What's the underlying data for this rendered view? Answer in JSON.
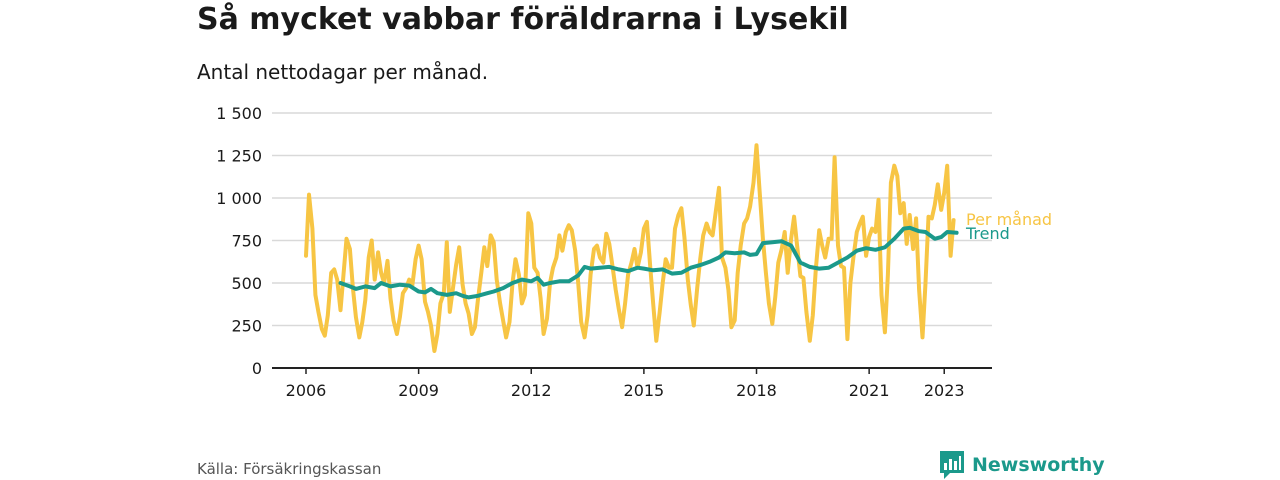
{
  "title": "Så mycket vabbar föräldrarna i Lysekil",
  "subtitle": "Antal nettodagar per månad.",
  "source": "Källa: Försäkringskassan",
  "brand": "Newsworthy",
  "colors": {
    "monthly": "#f7c544",
    "trend": "#1b998b",
    "grid": "#d9d9d9",
    "axis": "#222222"
  },
  "chart_data": {
    "type": "line",
    "ylim": [
      0,
      1500
    ],
    "y_ticks": [
      0,
      250,
      500,
      750,
      1000,
      1250,
      1500
    ],
    "y_tick_labels": [
      "0",
      "250",
      "500",
      "750",
      "1 000",
      "1 250",
      "1 500"
    ],
    "x_range": [
      2006.0,
      2023.5
    ],
    "x_ticks": [
      2006,
      2009,
      2012,
      2015,
      2018,
      2021,
      2023
    ],
    "x_tick_labels": [
      "2006",
      "2009",
      "2012",
      "2015",
      "2018",
      "2021",
      "2023"
    ],
    "grid": "horizontal",
    "series": [
      {
        "name": "Per månad",
        "points": [
          [
            2006.0,
            660
          ],
          [
            2006.08,
            1020
          ],
          [
            2006.17,
            820
          ],
          [
            2006.25,
            430
          ],
          [
            2006.33,
            330
          ],
          [
            2006.42,
            230
          ],
          [
            2006.5,
            190
          ],
          [
            2006.58,
            310
          ],
          [
            2006.67,
            560
          ],
          [
            2006.75,
            580
          ],
          [
            2006.83,
            520
          ],
          [
            2006.92,
            340
          ],
          [
            2007.0,
            550
          ],
          [
            2007.08,
            760
          ],
          [
            2007.17,
            700
          ],
          [
            2007.25,
            470
          ],
          [
            2007.33,
            300
          ],
          [
            2007.42,
            180
          ],
          [
            2007.5,
            270
          ],
          [
            2007.58,
            400
          ],
          [
            2007.67,
            650
          ],
          [
            2007.75,
            750
          ],
          [
            2007.83,
            520
          ],
          [
            2007.92,
            680
          ],
          [
            2008.0,
            560
          ],
          [
            2008.08,
            500
          ],
          [
            2008.17,
            630
          ],
          [
            2008.25,
            410
          ],
          [
            2008.33,
            280
          ],
          [
            2008.42,
            200
          ],
          [
            2008.5,
            300
          ],
          [
            2008.58,
            440
          ],
          [
            2008.67,
            470
          ],
          [
            2008.75,
            520
          ],
          [
            2008.83,
            480
          ],
          [
            2008.92,
            640
          ],
          [
            2009.0,
            720
          ],
          [
            2009.08,
            640
          ],
          [
            2009.17,
            390
          ],
          [
            2009.25,
            330
          ],
          [
            2009.33,
            250
          ],
          [
            2009.42,
            100
          ],
          [
            2009.5,
            200
          ],
          [
            2009.58,
            380
          ],
          [
            2009.67,
            440
          ],
          [
            2009.75,
            740
          ],
          [
            2009.83,
            330
          ],
          [
            2009.92,
            480
          ],
          [
            2010.0,
            610
          ],
          [
            2010.08,
            710
          ],
          [
            2010.17,
            490
          ],
          [
            2010.25,
            380
          ],
          [
            2010.33,
            320
          ],
          [
            2010.42,
            200
          ],
          [
            2010.5,
            240
          ],
          [
            2010.58,
            400
          ],
          [
            2010.67,
            560
          ],
          [
            2010.75,
            710
          ],
          [
            2010.83,
            600
          ],
          [
            2010.92,
            780
          ],
          [
            2011.0,
            740
          ],
          [
            2011.08,
            520
          ],
          [
            2011.17,
            380
          ],
          [
            2011.25,
            280
          ],
          [
            2011.33,
            180
          ],
          [
            2011.42,
            270
          ],
          [
            2011.5,
            500
          ],
          [
            2011.58,
            640
          ],
          [
            2011.67,
            550
          ],
          [
            2011.75,
            380
          ],
          [
            2011.83,
            430
          ],
          [
            2011.92,
            910
          ],
          [
            2012.0,
            850
          ],
          [
            2012.08,
            590
          ],
          [
            2012.17,
            560
          ],
          [
            2012.25,
            410
          ],
          [
            2012.33,
            200
          ],
          [
            2012.42,
            290
          ],
          [
            2012.5,
            500
          ],
          [
            2012.58,
            590
          ],
          [
            2012.67,
            650
          ],
          [
            2012.75,
            780
          ],
          [
            2012.83,
            690
          ],
          [
            2012.92,
            800
          ],
          [
            2013.0,
            840
          ],
          [
            2013.08,
            810
          ],
          [
            2013.17,
            690
          ],
          [
            2013.25,
            500
          ],
          [
            2013.33,
            270
          ],
          [
            2013.42,
            180
          ],
          [
            2013.5,
            310
          ],
          [
            2013.58,
            550
          ],
          [
            2013.67,
            700
          ],
          [
            2013.75,
            720
          ],
          [
            2013.83,
            650
          ],
          [
            2013.92,
            620
          ],
          [
            2014.0,
            790
          ],
          [
            2014.08,
            730
          ],
          [
            2014.17,
            590
          ],
          [
            2014.25,
            460
          ],
          [
            2014.33,
            350
          ],
          [
            2014.42,
            240
          ],
          [
            2014.5,
            380
          ],
          [
            2014.58,
            550
          ],
          [
            2014.67,
            620
          ],
          [
            2014.75,
            700
          ],
          [
            2014.83,
            590
          ],
          [
            2014.92,
            680
          ],
          [
            2015.0,
            820
          ],
          [
            2015.08,
            860
          ],
          [
            2015.17,
            590
          ],
          [
            2015.25,
            370
          ],
          [
            2015.33,
            160
          ],
          [
            2015.42,
            330
          ],
          [
            2015.5,
            500
          ],
          [
            2015.58,
            640
          ],
          [
            2015.67,
            590
          ],
          [
            2015.75,
            590
          ],
          [
            2015.83,
            820
          ],
          [
            2015.92,
            900
          ],
          [
            2016.0,
            940
          ],
          [
            2016.08,
            770
          ],
          [
            2016.17,
            520
          ],
          [
            2016.25,
            370
          ],
          [
            2016.33,
            250
          ],
          [
            2016.42,
            470
          ],
          [
            2016.5,
            640
          ],
          [
            2016.58,
            780
          ],
          [
            2016.67,
            850
          ],
          [
            2016.75,
            800
          ],
          [
            2016.83,
            780
          ],
          [
            2016.92,
            930
          ],
          [
            2017.0,
            1060
          ],
          [
            2017.08,
            650
          ],
          [
            2017.17,
            590
          ],
          [
            2017.25,
            460
          ],
          [
            2017.33,
            240
          ],
          [
            2017.42,
            280
          ],
          [
            2017.5,
            560
          ],
          [
            2017.58,
            720
          ],
          [
            2017.67,
            850
          ],
          [
            2017.75,
            880
          ],
          [
            2017.83,
            950
          ],
          [
            2017.92,
            1090
          ],
          [
            2018.0,
            1310
          ],
          [
            2018.08,
            1050
          ],
          [
            2018.17,
            760
          ],
          [
            2018.25,
            560
          ],
          [
            2018.33,
            380
          ],
          [
            2018.42,
            260
          ],
          [
            2018.5,
            420
          ],
          [
            2018.58,
            620
          ],
          [
            2018.67,
            700
          ],
          [
            2018.75,
            800
          ],
          [
            2018.83,
            560
          ],
          [
            2018.92,
            760
          ],
          [
            2019.0,
            890
          ],
          [
            2019.08,
            720
          ],
          [
            2019.17,
            540
          ],
          [
            2019.25,
            530
          ],
          [
            2019.33,
            330
          ],
          [
            2019.42,
            160
          ],
          [
            2019.5,
            310
          ],
          [
            2019.58,
            580
          ],
          [
            2019.67,
            810
          ],
          [
            2019.75,
            720
          ],
          [
            2019.83,
            650
          ],
          [
            2019.92,
            760
          ],
          [
            2020.0,
            760
          ],
          [
            2020.08,
            1240
          ],
          [
            2020.17,
            720
          ],
          [
            2020.25,
            600
          ],
          [
            2020.33,
            590
          ],
          [
            2020.42,
            170
          ],
          [
            2020.5,
            500
          ],
          [
            2020.58,
            650
          ],
          [
            2020.67,
            800
          ],
          [
            2020.75,
            850
          ],
          [
            2020.83,
            890
          ],
          [
            2020.92,
            660
          ],
          [
            2021.0,
            770
          ],
          [
            2021.08,
            820
          ],
          [
            2021.17,
            800
          ],
          [
            2021.25,
            990
          ],
          [
            2021.33,
            430
          ],
          [
            2021.42,
            210
          ],
          [
            2021.5,
            550
          ],
          [
            2021.58,
            1090
          ],
          [
            2021.67,
            1190
          ],
          [
            2021.75,
            1130
          ],
          [
            2021.83,
            910
          ],
          [
            2021.92,
            970
          ],
          [
            2022.0,
            730
          ],
          [
            2022.08,
            900
          ],
          [
            2022.17,
            700
          ],
          [
            2022.25,
            880
          ],
          [
            2022.33,
            460
          ],
          [
            2022.42,
            180
          ],
          [
            2022.5,
            500
          ],
          [
            2022.58,
            890
          ],
          [
            2022.67,
            880
          ],
          [
            2022.75,
            960
          ],
          [
            2022.83,
            1080
          ],
          [
            2022.92,
            930
          ],
          [
            2023.0,
            1030
          ],
          [
            2023.08,
            1190
          ],
          [
            2023.17,
            660
          ],
          [
            2023.25,
            870
          ]
        ]
      },
      {
        "name": "Trend",
        "points": [
          [
            2006.92,
            500
          ],
          [
            2007.17,
            480
          ],
          [
            2007.33,
            465
          ],
          [
            2007.58,
            480
          ],
          [
            2007.83,
            470
          ],
          [
            2008.0,
            500
          ],
          [
            2008.25,
            480
          ],
          [
            2008.5,
            490
          ],
          [
            2008.75,
            485
          ],
          [
            2009.0,
            450
          ],
          [
            2009.17,
            445
          ],
          [
            2009.33,
            465
          ],
          [
            2009.5,
            440
          ],
          [
            2009.75,
            430
          ],
          [
            2010.0,
            440
          ],
          [
            2010.17,
            425
          ],
          [
            2010.33,
            415
          ],
          [
            2010.58,
            425
          ],
          [
            2010.83,
            440
          ],
          [
            2011.0,
            450
          ],
          [
            2011.25,
            470
          ],
          [
            2011.5,
            500
          ],
          [
            2011.75,
            520
          ],
          [
            2012.0,
            510
          ],
          [
            2012.17,
            530
          ],
          [
            2012.33,
            490
          ],
          [
            2012.5,
            500
          ],
          [
            2012.75,
            510
          ],
          [
            2013.0,
            510
          ],
          [
            2013.25,
            545
          ],
          [
            2013.42,
            595
          ],
          [
            2013.58,
            585
          ],
          [
            2013.83,
            590
          ],
          [
            2014.08,
            595
          ],
          [
            2014.33,
            580
          ],
          [
            2014.58,
            570
          ],
          [
            2014.83,
            590
          ],
          [
            2015.0,
            585
          ],
          [
            2015.25,
            575
          ],
          [
            2015.5,
            580
          ],
          [
            2015.75,
            555
          ],
          [
            2016.0,
            560
          ],
          [
            2016.25,
            590
          ],
          [
            2016.5,
            605
          ],
          [
            2016.75,
            625
          ],
          [
            2017.0,
            650
          ],
          [
            2017.17,
            680
          ],
          [
            2017.42,
            675
          ],
          [
            2017.67,
            680
          ],
          [
            2017.83,
            665
          ],
          [
            2018.0,
            670
          ],
          [
            2018.17,
            735
          ],
          [
            2018.42,
            740
          ],
          [
            2018.67,
            745
          ],
          [
            2018.92,
            720
          ],
          [
            2019.17,
            620
          ],
          [
            2019.42,
            595
          ],
          [
            2019.67,
            585
          ],
          [
            2019.92,
            590
          ],
          [
            2020.17,
            620
          ],
          [
            2020.42,
            650
          ],
          [
            2020.67,
            690
          ],
          [
            2020.92,
            705
          ],
          [
            2021.17,
            695
          ],
          [
            2021.42,
            710
          ],
          [
            2021.67,
            760
          ],
          [
            2021.92,
            820
          ],
          [
            2022.08,
            825
          ],
          [
            2022.33,
            805
          ],
          [
            2022.5,
            800
          ],
          [
            2022.75,
            760
          ],
          [
            2022.92,
            770
          ],
          [
            2023.08,
            800
          ],
          [
            2023.33,
            795
          ]
        ]
      }
    ]
  }
}
